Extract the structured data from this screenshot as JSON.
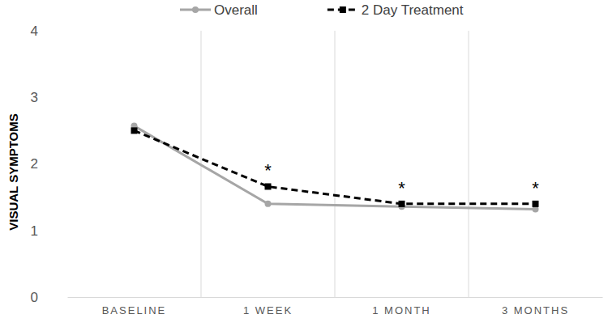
{
  "chart_data": {
    "type": "line",
    "y_label": "VISUAL SYMPTOMS",
    "categories": [
      "BASELINE",
      "1 WEEK",
      "1 MONTH",
      "3 MONTHS"
    ],
    "series": [
      {
        "name": "Overall",
        "color": "#a6a6a6",
        "marker": "circle",
        "line_style": "solid",
        "values": [
          2.57,
          1.4,
          1.36,
          1.32
        ]
      },
      {
        "name": "2 Day Treatment",
        "color": "#000000",
        "marker": "square",
        "line_style": "dashed",
        "values": [
          2.5,
          1.66,
          1.4,
          1.4
        ]
      }
    ],
    "annotations": [
      {
        "x": "1 WEEK",
        "text": "*"
      },
      {
        "x": "1 MONTH",
        "text": "*"
      },
      {
        "x": "3 MONTHS",
        "text": "*"
      }
    ],
    "ylim": [
      0,
      4
    ],
    "yticks": [
      0,
      1,
      2,
      3,
      4
    ],
    "grid": "x",
    "legend": "top"
  }
}
